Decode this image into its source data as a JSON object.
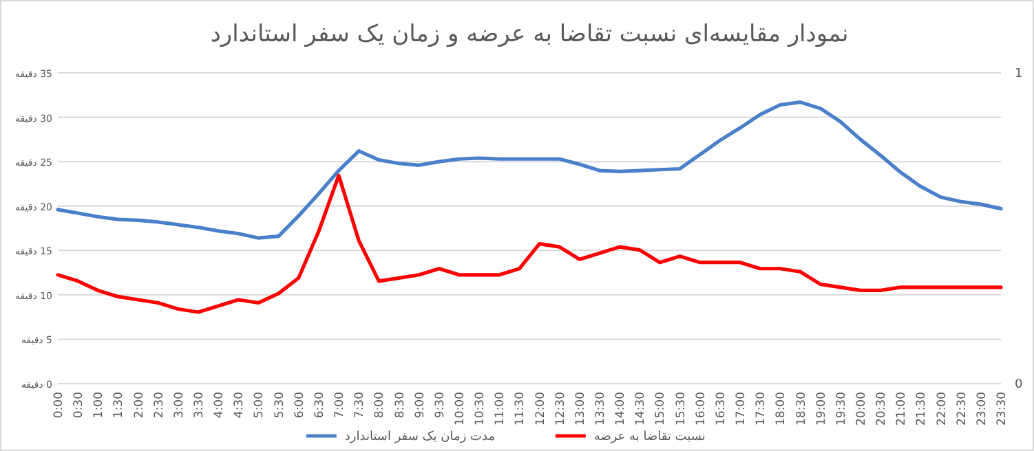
{
  "chart_data": {
    "type": "line",
    "title": "نمودار مقایسه‌ای نسبت تقاضا به عرضه و زمان یک سفر استاندارد",
    "categories": [
      "0:00",
      "0:30",
      "1:00",
      "1:30",
      "2:00",
      "2:30",
      "3:00",
      "3:30",
      "4:00",
      "4:30",
      "5:00",
      "5:30",
      "6:00",
      "6:30",
      "7:00",
      "7:30",
      "8:00",
      "8:30",
      "9:00",
      "9:30",
      "10:00",
      "10:30",
      "11:00",
      "11:30",
      "12:00",
      "12:30",
      "13:00",
      "13:30",
      "14:00",
      "14:30",
      "15:00",
      "15:30",
      "16:00",
      "16:30",
      "17:00",
      "17:30",
      "18:00",
      "18:30",
      "19:00",
      "19:30",
      "20:00",
      "20:30",
      "21:00",
      "21:30",
      "22:00",
      "22:30",
      "23:00",
      "23:30"
    ],
    "series": [
      {
        "name": "مدت زمان یک سفر استاندارد",
        "color": "#4a7fc9",
        "values": [
          19.6,
          19.2,
          18.8,
          18.5,
          18.4,
          18.2,
          17.9,
          17.6,
          17.2,
          16.9,
          16.4,
          16.6,
          18.9,
          21.4,
          24.0,
          26.2,
          25.2,
          24.8,
          24.6,
          25.0,
          25.3,
          25.4,
          25.3,
          25.3,
          25.3,
          25.3,
          24.7,
          24.0,
          23.9,
          24.0,
          24.1,
          24.2,
          25.8,
          27.4,
          28.8,
          30.3,
          31.4,
          31.7,
          31.0,
          29.5,
          27.5,
          25.7,
          23.8,
          22.2,
          21.0,
          20.5,
          20.2,
          19.7
        ]
      },
      {
        "name": "نسبت تقاضا به عرضه",
        "color": "#ff0000",
        "axis": "y2",
        "values": [
          0.35,
          0.33,
          0.3,
          0.28,
          0.27,
          0.26,
          0.24,
          0.23,
          0.25,
          0.27,
          0.26,
          0.29,
          0.34,
          0.49,
          0.67,
          0.46,
          0.33,
          0.34,
          0.35,
          0.37,
          0.35,
          0.35,
          0.35,
          0.37,
          0.45,
          0.44,
          0.4,
          0.42,
          0.44,
          0.43,
          0.39,
          0.41,
          0.39,
          0.39,
          0.39,
          0.37,
          0.37,
          0.36,
          0.32,
          0.31,
          0.3,
          0.3,
          0.31,
          0.31,
          0.31,
          0.31,
          0.31,
          0.31
        ]
      }
    ],
    "ylim": [
      0,
      35
    ],
    "yticks": [
      {
        "value": 0,
        "label": "0 دقیقه"
      },
      {
        "value": 5,
        "label": "5 دقیقه"
      },
      {
        "value": 10,
        "label": "10 دقیقه"
      },
      {
        "value": 15,
        "label": "15 دقیقه"
      },
      {
        "value": 20,
        "label": "20 دقیقه"
      },
      {
        "value": 25,
        "label": "25 دقیقه"
      },
      {
        "value": 30,
        "label": "30 دقیقه"
      },
      {
        "value": 35,
        "label": "35 دقیقه"
      }
    ],
    "y2lim": [
      0,
      1
    ],
    "y2ticks": [
      0,
      1
    ],
    "grid": "y",
    "legend": "bottom",
    "marker": "none",
    "line_style": "solid"
  }
}
